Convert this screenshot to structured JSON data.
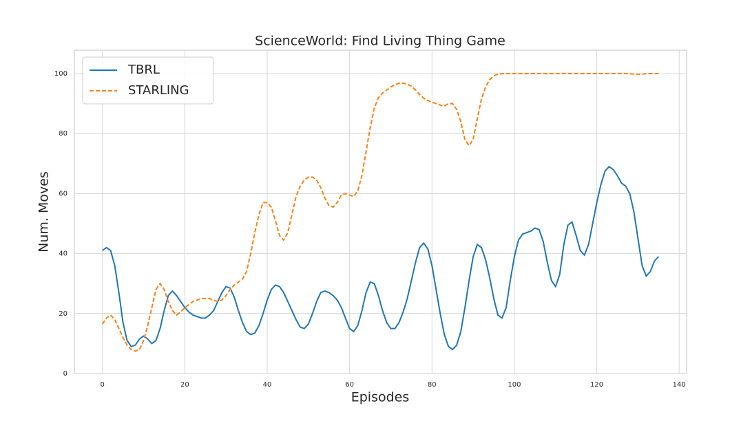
{
  "chart_data": {
    "type": "line",
    "title": "ScienceWorld: Find Living Thing Game",
    "xlabel": "Episodes",
    "ylabel": "Num. Moves",
    "x": [
      0,
      1,
      2,
      3,
      4,
      5,
      6,
      7,
      8,
      9,
      10,
      11,
      12,
      13,
      14,
      15,
      16,
      17,
      18,
      19,
      20,
      21,
      22,
      23,
      24,
      25,
      26,
      27,
      28,
      29,
      30,
      31,
      32,
      33,
      34,
      35,
      36,
      37,
      38,
      39,
      40,
      41,
      42,
      43,
      44,
      45,
      46,
      47,
      48,
      49,
      50,
      51,
      52,
      53,
      54,
      55,
      56,
      57,
      58,
      59,
      60,
      61,
      62,
      63,
      64,
      65,
      66,
      67,
      68,
      69,
      70,
      71,
      72,
      73,
      74,
      75,
      76,
      77,
      78,
      79,
      80,
      81,
      82,
      83,
      84,
      85,
      86,
      87,
      88,
      89,
      90,
      91,
      92,
      93,
      94,
      95,
      96,
      97,
      98,
      99,
      100,
      101,
      102,
      103,
      104,
      105,
      106,
      107,
      108,
      109,
      110,
      111,
      112,
      113,
      114,
      115,
      116,
      117,
      118,
      119,
      120,
      121,
      122,
      123,
      124,
      125,
      126,
      127,
      128,
      129,
      130,
      131,
      132,
      133,
      134,
      135
    ],
    "series": [
      {
        "name": "TBRL",
        "color": "#1f77b4",
        "dash": false,
        "values": [
          41,
          42,
          41,
          36,
          27,
          17,
          11,
          9,
          9.5,
          11.5,
          12.5,
          11.5,
          10,
          11,
          15,
          21,
          26,
          27.5,
          26,
          24,
          22,
          20.5,
          19.5,
          19,
          18.5,
          18.5,
          19.5,
          21,
          24,
          27,
          29,
          28.5,
          25.5,
          21,
          17,
          14,
          13,
          13.5,
          16,
          20,
          24.5,
          28,
          29.5,
          29,
          27,
          24,
          21,
          18,
          15.5,
          15,
          16.5,
          20,
          24,
          27,
          27.5,
          27,
          26,
          24.5,
          22,
          18.5,
          15,
          14,
          16,
          21,
          27,
          30.5,
          30,
          26,
          21,
          17,
          15,
          15,
          17,
          20.5,
          25,
          31,
          37,
          42,
          43.5,
          41.5,
          36,
          28,
          20,
          13,
          9,
          8,
          9.5,
          14,
          22,
          31,
          39,
          43,
          42,
          38,
          32,
          25,
          19.5,
          18.5,
          22,
          31,
          39,
          44.5,
          46.5,
          47,
          47.5,
          48.5,
          48,
          44,
          37,
          31,
          29,
          33,
          43,
          49.5,
          50.5,
          46,
          41,
          39.5,
          43,
          50,
          57,
          63,
          67.5,
          69,
          68,
          66,
          63.5,
          62.5,
          60,
          54,
          45,
          36,
          32.5,
          34,
          37.5,
          39
        ]
      },
      {
        "name": "STARLING",
        "color": "#ff7f0e",
        "dash": true,
        "values": [
          16.5,
          18.5,
          19.5,
          18,
          15,
          12,
          9.5,
          8,
          7.5,
          8,
          11,
          16,
          22,
          28,
          30,
          28,
          24,
          21,
          19.5,
          20.5,
          22,
          23,
          24,
          24.5,
          25,
          25,
          25,
          24.5,
          24,
          24.5,
          26,
          28,
          29.5,
          30.5,
          31.5,
          34,
          40,
          47,
          53,
          57,
          57,
          55.5,
          51,
          46,
          44.5,
          47,
          53,
          59,
          62.5,
          64.5,
          65.5,
          65.5,
          64.5,
          62,
          58.5,
          56,
          55.5,
          57,
          59.5,
          60,
          59.5,
          59,
          61,
          66,
          74,
          82,
          88.5,
          92,
          93.5,
          94.5,
          95.5,
          96.3,
          96.8,
          96.8,
          96.5,
          95.8,
          94.5,
          93,
          91.8,
          91,
          90.5,
          90,
          89.5,
          89.2,
          90,
          90,
          88,
          84,
          78,
          76,
          78,
          85,
          91.5,
          95.5,
          98,
          99.3,
          99.8,
          100,
          100,
          100,
          100,
          100,
          100,
          100,
          100,
          100,
          100,
          100,
          100,
          100,
          100,
          100,
          100,
          100,
          100,
          100,
          100,
          100,
          100,
          100,
          100,
          100,
          100,
          100,
          100,
          100,
          100,
          100,
          100,
          99.8,
          99.8,
          99.8,
          100,
          100,
          100,
          100
        ]
      }
    ],
    "xlim": [
      -6.8,
      141.8
    ],
    "ylim": [
      0,
      107.8
    ],
    "xticks": [
      0,
      20,
      40,
      60,
      80,
      100,
      120,
      140
    ],
    "yticks": [
      0,
      20,
      40,
      60,
      80,
      100
    ],
    "grid": true,
    "legend": "upper-left"
  }
}
